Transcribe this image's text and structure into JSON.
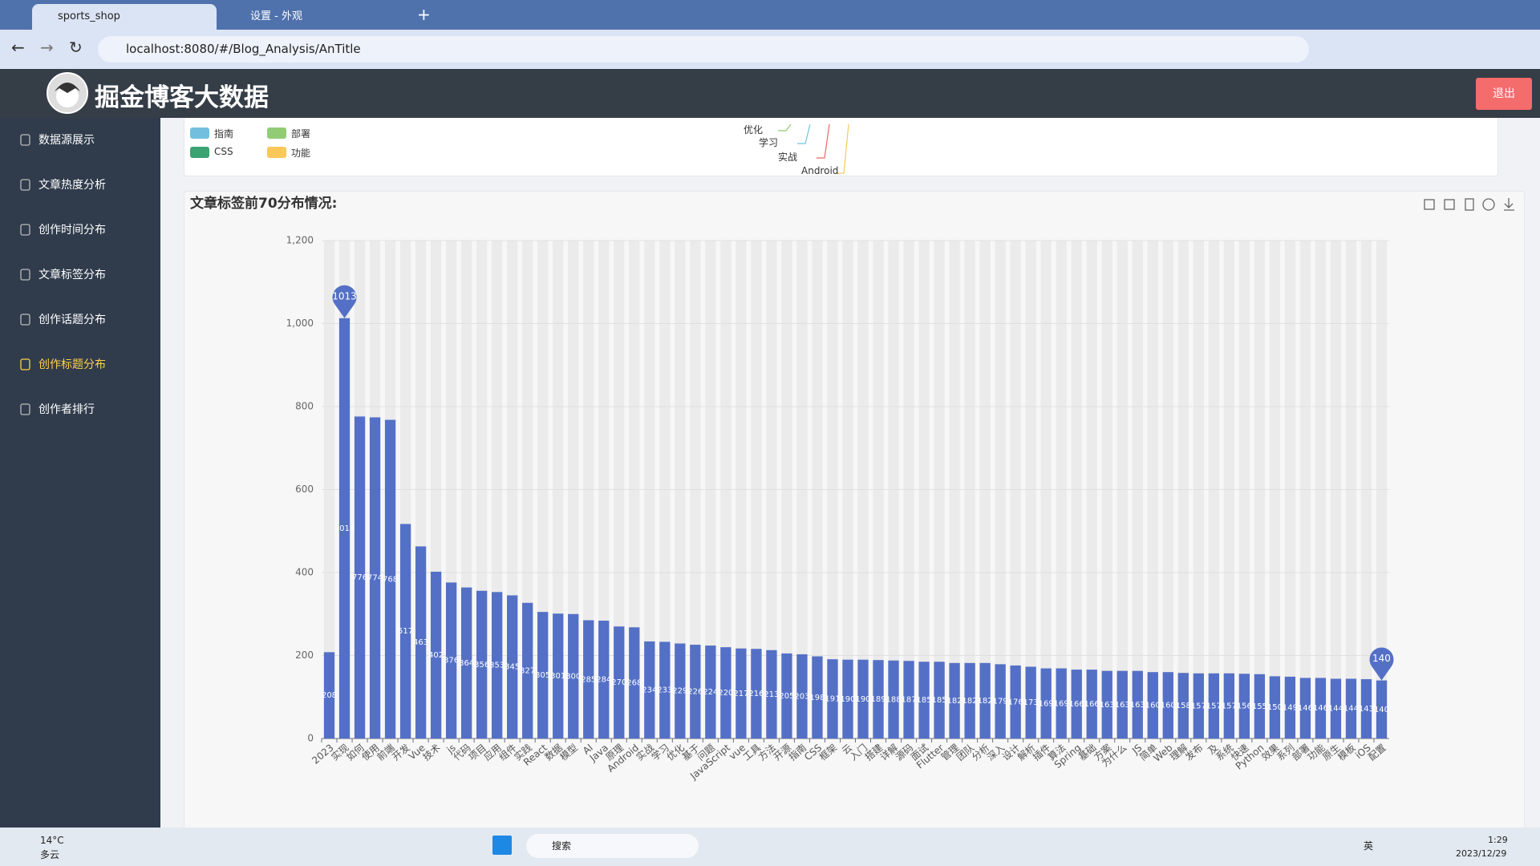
{
  "browser": {
    "tabs": [
      "sports_shop",
      "设置 - 外观"
    ],
    "url": "localhost:8080/#/Blog_Analysis/AnTitle"
  },
  "header": {
    "title": "掘金博客大数据",
    "logout": "退出"
  },
  "sidebar": {
    "items": [
      "数据源展示",
      "文章热度分析",
      "创作时间分布",
      "文章标签分布",
      "创作话题分布",
      "创作标题分布",
      "创作者排行"
    ],
    "active": 5
  },
  "top_panel": {
    "legend": [
      "指南",
      "部署",
      "CSS",
      "功能"
    ],
    "legend_colors": [
      "#73c0de",
      "#91cc75",
      "#3ba272",
      "#fac858"
    ],
    "tree_labels": [
      "优化",
      "学习",
      "实战",
      "Android"
    ]
  },
  "chart_data": {
    "type": "bar",
    "title": "文章标签前70分布情况:",
    "color": "#5470c6",
    "grid": true,
    "categories": [
      "2023",
      "实现",
      "如何",
      "使用",
      "前端",
      "开发",
      "Vue",
      "技术",
      "js",
      "代码",
      "项目",
      "应用",
      "组件",
      "实践",
      "React",
      "数据",
      "模型",
      "AI",
      "Java",
      "原理",
      "Android",
      "实战",
      "学习",
      "优化",
      "基于",
      "问题",
      "JavaScript",
      "vue",
      "工具",
      "方法",
      "开源",
      "指南",
      "CSS",
      "框架",
      "云",
      "入门",
      "搭建",
      "详解",
      "源码",
      "面试",
      "Flutter",
      "管理",
      "团队",
      "分析",
      "深入",
      "设计",
      "解析",
      "插件",
      "算法",
      "Spring",
      "基础",
      "方案",
      "为什么",
      "JS",
      "简单",
      "Web",
      "理解",
      "发布",
      "及",
      "系统",
      "快速",
      "Python",
      "效果",
      "系列",
      "部署",
      "功能",
      "原生",
      "模板",
      "iOS",
      "配置"
    ],
    "values": [
      208,
      1013,
      776,
      774,
      768,
      517,
      463,
      402,
      376,
      364,
      356,
      353,
      345,
      327,
      305,
      301,
      300,
      285,
      284,
      270,
      268,
      234,
      233,
      229,
      226,
      224,
      220,
      217,
      216,
      213,
      205,
      203,
      198,
      191,
      190,
      190,
      189,
      188,
      187,
      185,
      185,
      182,
      182,
      182,
      179,
      176,
      173,
      169,
      169,
      166,
      166,
      163,
      163,
      163,
      160,
      160,
      158,
      157,
      157,
      157,
      156,
      155,
      150,
      149,
      146,
      146,
      144,
      144,
      143,
      140
    ],
    "ylim": [
      0,
      1200
    ],
    "yticks": [
      0,
      200,
      400,
      600,
      800,
      {
        "value": 1000,
        "label": "1,000"
      },
      {
        "value": 1200,
        "label": "1,200"
      }
    ]
  },
  "taskbar": {
    "temp": "14°C",
    "weather": "多云",
    "search": "搜索",
    "ime": "英",
    "time": "1:29",
    "date": "2023/12/29"
  }
}
